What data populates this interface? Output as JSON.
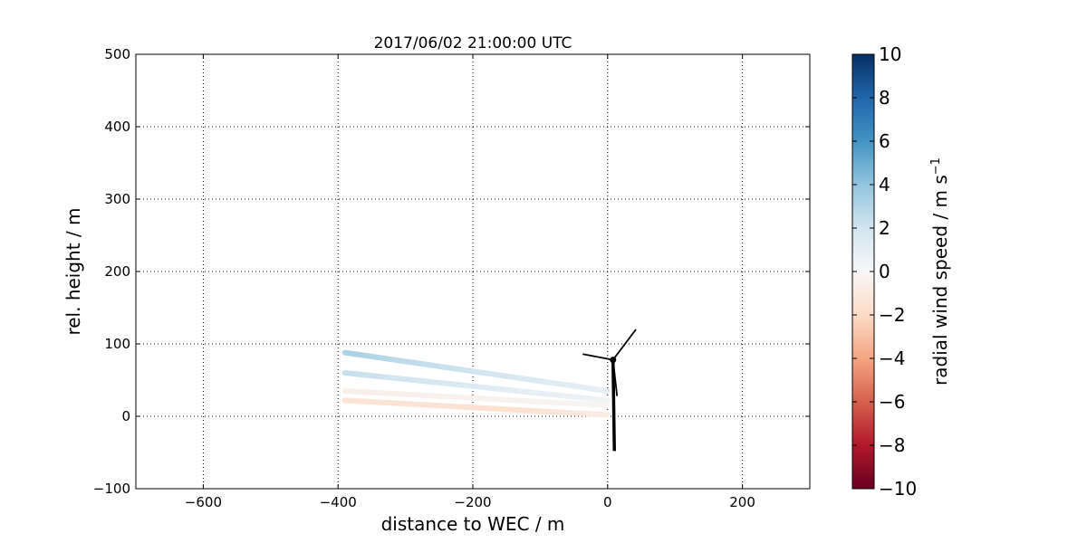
{
  "chart_data": {
    "type": "line",
    "title": "2017/06/02 21:00:00 UTC",
    "xlabel": "distance to WEC / m",
    "ylabel": "rel. height / m",
    "xlim": [
      -700,
      300
    ],
    "ylim": [
      -100,
      500
    ],
    "xticks": [
      -600,
      -400,
      -200,
      0,
      200
    ],
    "yticks": [
      -100,
      0,
      100,
      200,
      300,
      400,
      500
    ],
    "grid": true,
    "colorbar": {
      "label": "radial wind speed / m s",
      "label_superscript": "−1",
      "range": [
        -10,
        10
      ],
      "ticks": [
        10,
        8,
        6,
        4,
        2,
        0,
        -2,
        -4,
        -6,
        -8,
        -10
      ],
      "colormap": "RdBu"
    },
    "series": [
      {
        "x": [
          -390,
          0
        ],
        "y": [
          88,
          35
        ],
        "speed": [
          3.2,
          0.8
        ]
      },
      {
        "x": [
          -390,
          0
        ],
        "y": [
          60,
          22
        ],
        "speed": [
          2.4,
          0.4
        ]
      },
      {
        "x": [
          -390,
          0
        ],
        "y": [
          35,
          15
        ],
        "speed": [
          -0.6,
          -0.2
        ]
      },
      {
        "x": [
          -390,
          -120,
          0
        ],
        "y": [
          22,
          8,
          2
        ],
        "speed": [
          -1.4,
          -1.6,
          -0.8
        ]
      }
    ],
    "turbine": {
      "hub": [
        8,
        78
      ],
      "tower_base": [
        10,
        -48
      ],
      "blade_tips": [
        [
          42,
          120
        ],
        [
          -37,
          86
        ],
        [
          14,
          28
        ]
      ]
    }
  }
}
